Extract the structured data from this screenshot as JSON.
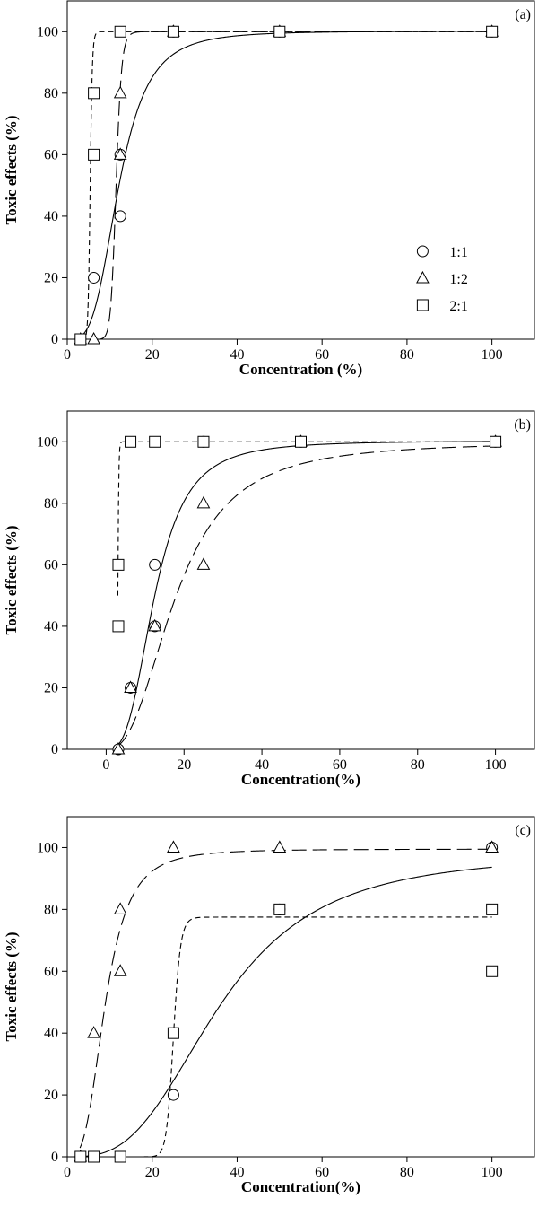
{
  "chart_data": [
    {
      "type": "scatter",
      "panel_label": "(a)",
      "title": "",
      "xlabel": "Concentration (%)",
      "ylabel": "Toxic effects (%)",
      "xlim": [
        0,
        110
      ],
      "ylim": [
        0,
        110
      ],
      "xticks": [
        0,
        20,
        40,
        60,
        80,
        100
      ],
      "yticks": [
        0,
        20,
        40,
        60,
        80,
        100
      ],
      "grid": false,
      "legend_position": "bottom-right",
      "series": [
        {
          "name": "1:1",
          "marker": "circle",
          "line": "solid",
          "points": [
            [
              3.125,
              0
            ],
            [
              6.25,
              20
            ],
            [
              12.5,
              60
            ],
            [
              12.5,
              40
            ],
            [
              25,
              100
            ],
            [
              50,
              100
            ],
            [
              100,
              100
            ]
          ],
          "fit": {
            "bottom": 0,
            "top": 100.2,
            "x50": 12.2,
            "slope": 3.5
          }
        },
        {
          "name": "1:2",
          "marker": "triangle",
          "line": "long-dash",
          "points": [
            [
              3.125,
              0
            ],
            [
              6.25,
              0
            ],
            [
              12.5,
              80
            ],
            [
              12.5,
              60
            ],
            [
              25,
              100
            ],
            [
              50,
              100
            ],
            [
              100,
              100
            ]
          ],
          "fit": {
            "bottom": 0,
            "top": 100,
            "x50": 11.5,
            "slope": 18
          }
        },
        {
          "name": "2:1",
          "marker": "square",
          "line": "short-dash",
          "points": [
            [
              3.125,
              0
            ],
            [
              6.25,
              80
            ],
            [
              6.25,
              60
            ],
            [
              12.5,
              100
            ],
            [
              25,
              100
            ],
            [
              50,
              100
            ],
            [
              100,
              100
            ]
          ],
          "fit": {
            "bottom": 0,
            "top": 100,
            "x50": 5.4,
            "slope": 22
          }
        }
      ]
    },
    {
      "type": "scatter",
      "panel_label": "(b)",
      "title": "",
      "xlabel": "Concentration(%)",
      "ylabel": "Toxic effects (%)",
      "xlim": [
        -10,
        110
      ],
      "ylim": [
        0,
        110
      ],
      "xticks": [
        0,
        20,
        40,
        60,
        80,
        100
      ],
      "yticks": [
        0,
        20,
        40,
        60,
        80,
        100
      ],
      "grid": false,
      "legend_position": "none",
      "series": [
        {
          "marker": "circle",
          "line": "solid",
          "points": [
            [
              3.125,
              0
            ],
            [
              6.25,
              20
            ],
            [
              12.5,
              60
            ],
            [
              12.5,
              40
            ],
            [
              25,
              100
            ],
            [
              50,
              100
            ],
            [
              100,
              100
            ]
          ],
          "fit": {
            "bottom": 0,
            "top": 100.3,
            "x50": 12.5,
            "slope": 3
          }
        },
        {
          "marker": "triangle",
          "line": "long-dash",
          "points": [
            [
              3.125,
              0
            ],
            [
              6.25,
              20
            ],
            [
              12.5,
              40
            ],
            [
              25,
              80
            ],
            [
              25,
              60
            ],
            [
              50,
              100
            ],
            [
              100,
              100
            ]
          ],
          "fit": {
            "bottom": 0,
            "top": 100,
            "x50": 18,
            "slope": 2.5
          }
        },
        {
          "marker": "square",
          "line": "short-dash",
          "points": [
            [
              3.125,
              60
            ],
            [
              3.125,
              40
            ],
            [
              6.25,
              100
            ],
            [
              12.5,
              100
            ],
            [
              25,
              100
            ],
            [
              50,
              100
            ],
            [
              100,
              100
            ]
          ],
          "fit": {
            "bottom": 0,
            "top": 100,
            "x50": 3.0,
            "slope": 25
          }
        }
      ]
    },
    {
      "type": "scatter",
      "panel_label": "(c)",
      "title": "",
      "xlabel": "Concentration(%)",
      "ylabel": "Toxic effects (%)",
      "xlim": [
        0,
        110
      ],
      "ylim": [
        0,
        110
      ],
      "xticks": [
        0,
        20,
        40,
        60,
        80,
        100
      ],
      "yticks": [
        0,
        20,
        40,
        60,
        80,
        100
      ],
      "grid": false,
      "legend_position": "none",
      "series": [
        {
          "marker": "circle",
          "line": "solid",
          "points": [
            [
              3.125,
              0
            ],
            [
              6.25,
              0
            ],
            [
              12.5,
              0
            ],
            [
              25,
              20
            ],
            [
              50,
              80
            ],
            [
              100,
              100
            ]
          ],
          "fit": {
            "bottom": 0,
            "top": 98,
            "x50": 36,
            "slope": 3
          }
        },
        {
          "marker": "triangle",
          "line": "long-dash",
          "points": [
            [
              3.125,
              0
            ],
            [
              6.25,
              40
            ],
            [
              12.5,
              80
            ],
            [
              12.5,
              60
            ],
            [
              25,
              100
            ],
            [
              50,
              100
            ],
            [
              100,
              100
            ]
          ],
          "fit": {
            "bottom": 0,
            "top": 99.5,
            "x50": 9,
            "slope": 3.2
          }
        },
        {
          "marker": "square",
          "line": "short-dash",
          "points": [
            [
              3.125,
              0
            ],
            [
              6.25,
              0
            ],
            [
              12.5,
              0
            ],
            [
              25,
              40
            ],
            [
              50,
              80
            ],
            [
              100,
              80
            ],
            [
              100,
              60
            ]
          ],
          "fit": {
            "bottom": 0,
            "top": 77.5,
            "x50": 25,
            "slope": 30
          }
        }
      ]
    }
  ]
}
